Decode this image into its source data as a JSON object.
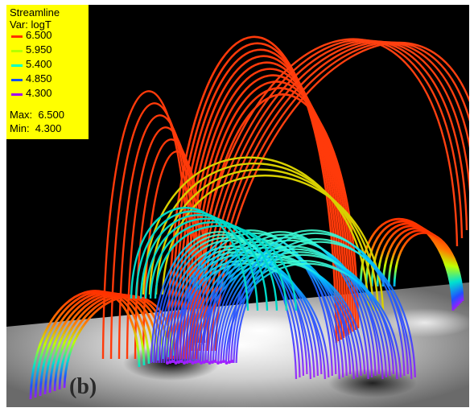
{
  "legend": {
    "title": "Streamline",
    "variable": "Var: logT",
    "ticks": [
      "6.500",
      "5.950",
      "5.400",
      "4.850",
      "4.300"
    ],
    "tick_colors": [
      "#ff3000",
      "#b4ff00",
      "#00ffc8",
      "#1050ff",
      "#a000ff"
    ],
    "max_text": "Max:  6.500",
    "min_text": "Min:  4.300"
  },
  "panel_label": "(b)",
  "colors": {
    "background": "#000000",
    "hot": "#ff3200",
    "cool": "#8a2be2",
    "surface": "#b8b8b8"
  }
}
